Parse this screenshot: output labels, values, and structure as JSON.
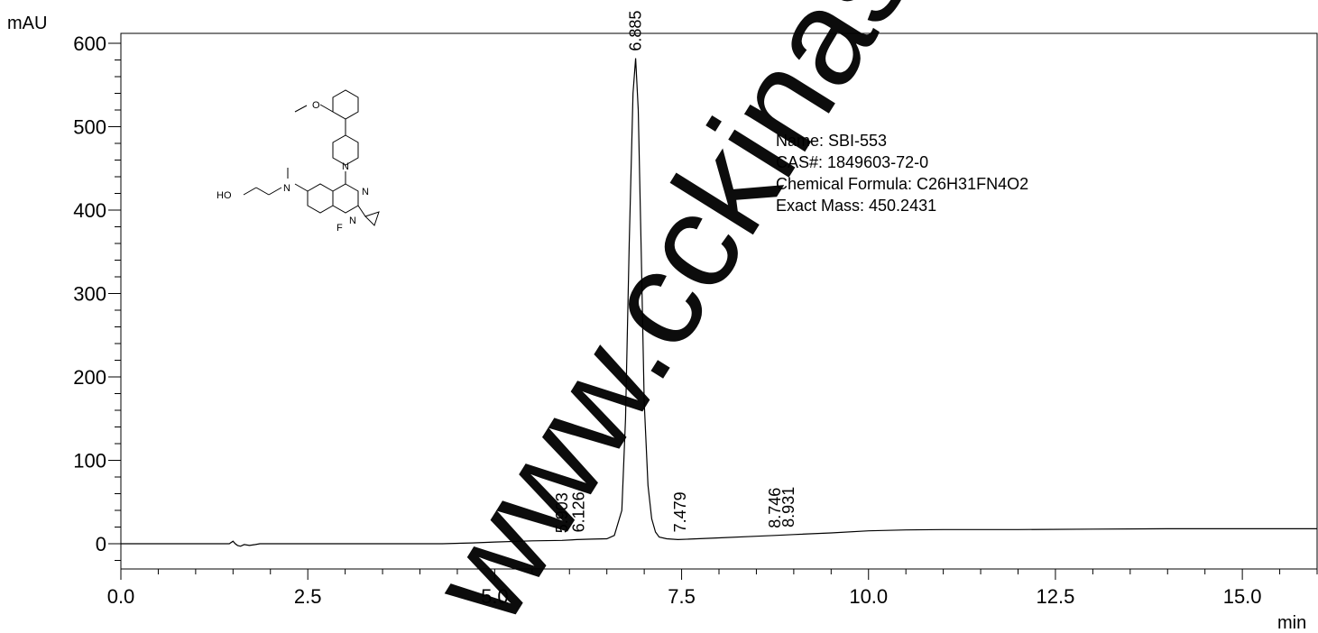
{
  "chart_data": {
    "type": "line",
    "ylabel": "mAU",
    "xlabel": "min",
    "xlim": [
      0,
      16.0
    ],
    "ylim": [
      -30,
      610
    ],
    "x_ticks": [
      "0.0",
      "2.5",
      "5.0",
      "7.5",
      "10.0",
      "12.5",
      "15.0"
    ],
    "x_tick_values": [
      0,
      2.5,
      5.0,
      7.5,
      10.0,
      12.5,
      15.0
    ],
    "y_ticks": [
      "0",
      "100",
      "200",
      "300",
      "400",
      "500",
      "600"
    ],
    "y_tick_values": [
      0,
      100,
      200,
      300,
      400,
      500,
      600
    ],
    "series": [
      {
        "x": [
          0.0,
          1.45,
          1.5,
          1.53,
          1.56,
          1.6,
          1.65,
          1.72,
          1.8,
          1.86,
          1.95,
          2.5,
          3.5,
          4.3,
          4.7,
          5.0,
          5.5,
          5.9,
          6.1,
          6.3,
          6.5,
          6.6,
          6.7,
          6.75,
          6.8,
          6.85,
          6.885,
          6.92,
          6.96,
          7.0,
          7.05,
          7.1,
          7.15,
          7.2,
          7.3,
          7.45,
          7.6,
          8.0,
          8.5,
          8.746,
          9.0,
          9.5,
          10.0,
          10.5,
          11.0,
          12.0,
          13.0,
          14.0,
          15.0,
          16.0
        ],
        "y": [
          0,
          0,
          3,
          0,
          -2,
          -3,
          -1,
          -2,
          -1,
          0,
          0,
          0,
          0,
          0,
          1,
          2,
          3.5,
          4,
          5,
          5.5,
          6,
          10,
          40,
          150,
          360,
          540,
          582,
          520,
          350,
          170,
          70,
          30,
          14,
          8,
          6,
          5,
          5.5,
          7,
          9,
          10,
          11,
          13,
          15.5,
          16.5,
          17,
          17,
          17.5,
          18,
          18,
          18
        ]
      }
    ],
    "peaks": [
      {
        "rt": 5.903,
        "label": "5.903",
        "y": 4
      },
      {
        "rt": 6.126,
        "label": "6.126",
        "y": 5
      },
      {
        "rt": 6.885,
        "label": "6.885",
        "y": 582
      },
      {
        "rt": 7.479,
        "label": "7.479",
        "y": 5
      },
      {
        "rt": 8.746,
        "label": "8.746",
        "y": 10
      },
      {
        "rt": 8.931,
        "label": "8.931",
        "y": 11
      }
    ]
  },
  "info": {
    "name": "Name: SBI-553",
    "cas": "CAS#: 1849603-72-0",
    "formula": "Chemical Formula: C26H31FN4O2",
    "mass": "Exact Mass: 450.2431"
  },
  "watermark": "www.cckinase.cc",
  "molecule_labels": {
    "ho": "HO",
    "n1": "N",
    "n2": "N",
    "n3": "N",
    "n4": "N",
    "o": "O",
    "f": "F"
  }
}
